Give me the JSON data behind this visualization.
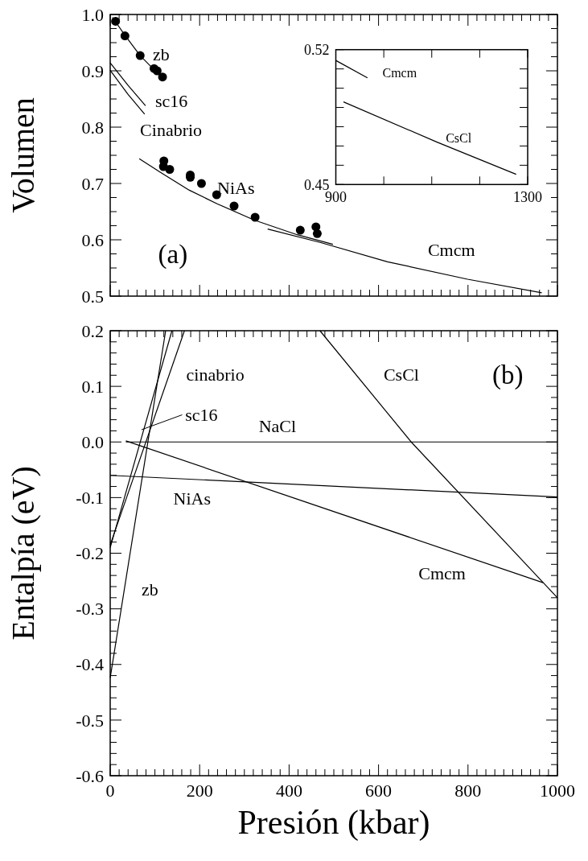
{
  "chart_data": [
    {
      "type": "line",
      "ylabel": "Volumen",
      "xlim": [
        0,
        1000
      ],
      "ylim": [
        0.5,
        1.0
      ],
      "xticks": [
        {
          "value": 0,
          "label": null
        },
        {
          "value": 200,
          "label": null
        },
        {
          "value": 400,
          "label": null
        },
        {
          "value": 600,
          "label": null
        },
        {
          "value": 800,
          "label": null
        },
        {
          "value": 1000,
          "label": null
        }
      ],
      "yticks": [
        0.5,
        0.6,
        0.7,
        0.8,
        0.9,
        {
          "value": 1.0,
          "label": "1.0"
        }
      ],
      "tick_labels": "y",
      "line_style": "solid",
      "marker": "none",
      "grid": false,
      "series": [
        {
          "color": "#000000",
          "x": [
            5,
            33,
            67,
            98,
            117
          ],
          "values": [
            0.995,
            0.963,
            0.927,
            0.902,
            0.889
          ]
        },
        {
          "color": "#000000",
          "x": [
            0,
            40,
            79
          ],
          "values": [
            0.914,
            0.874,
            0.838
          ]
        },
        {
          "color": "#000000",
          "x": [
            0,
            40,
            77
          ],
          "values": [
            0.901,
            0.858,
            0.823
          ]
        },
        {
          "color": "#000000",
          "x": [
            65,
            114,
            177,
            239,
            322,
            418,
            498
          ],
          "values": [
            0.744,
            0.719,
            0.688,
            0.664,
            0.635,
            0.609,
            0.592
          ]
        },
        {
          "color": "#000000",
          "x": [
            352,
            471,
            620,
            799,
            965
          ],
          "values": [
            0.619,
            0.595,
            0.561,
            0.53,
            0.506
          ]
        },
        {
          "type": "scatter",
          "marker": "circle",
          "color": "#000000",
          "x": [
            12,
            33,
            67,
            98,
            105,
            117,
            120,
            119,
            133,
            179,
            179,
            204,
            238,
            277,
            324,
            425,
            460,
            463
          ],
          "values": [
            0.988,
            0.962,
            0.927,
            0.904,
            0.9,
            0.889,
            0.74,
            0.73,
            0.725,
            0.715,
            0.711,
            0.7,
            0.68,
            0.66,
            0.64,
            0.617,
            0.623,
            0.611
          ]
        }
      ],
      "annotations": [
        "zb",
        "sc16",
        "Cinabrio",
        "NiAs",
        "Cmcm",
        "(a)"
      ]
    },
    {
      "type": "line",
      "xlim": [
        900,
        1300
      ],
      "ylim": [
        0.45,
        0.52
      ],
      "xticks": [
        900,
        {
          "value": 1000,
          "label": null
        },
        {
          "value": 1100,
          "label": null
        },
        {
          "value": 1200,
          "label": null
        },
        1300
      ],
      "yticks": [
        0.45,
        {
          "value": 0.46,
          "label": null
        },
        {
          "value": 0.47,
          "label": null
        },
        {
          "value": 0.48,
          "label": null
        },
        {
          "value": 0.49,
          "label": null
        },
        {
          "value": 0.5,
          "label": null
        },
        {
          "value": 0.51,
          "label": null
        },
        0.52
      ],
      "line_style": "solid",
      "marker": "none",
      "grid": false,
      "series": [
        {
          "color": "#000000",
          "x": [
            900,
            966
          ],
          "values": [
            0.5144,
            0.5054
          ]
        },
        {
          "color": "#000000",
          "x": [
            916,
            1111,
            1276
          ],
          "values": [
            0.4929,
            0.472,
            0.4553
          ]
        }
      ],
      "annotations": [
        "Cmcm",
        "CsCl"
      ]
    },
    {
      "type": "line",
      "xlabel": "Presión (kbar)",
      "ylabel": "Entalpía (eV)",
      "xlim": [
        0,
        1000
      ],
      "ylim": [
        -0.6,
        0.2
      ],
      "xticks": [
        0,
        200,
        400,
        600,
        800,
        1000
      ],
      "yticks": [
        -0.6,
        -0.5,
        -0.4,
        -0.3,
        -0.2,
        -0.1,
        {
          "value": 0,
          "label": "0.0"
        },
        0.1,
        0.2
      ],
      "line_style": "solid",
      "marker": "none",
      "grid": false,
      "series": [
        {
          "color": "#000000",
          "x": [
            0,
            124
          ],
          "values": [
            -0.424,
            0.2
          ]
        },
        {
          "color": "#000000",
          "x": [
            0,
            138
          ],
          "values": [
            -0.19,
            0.2
          ]
        },
        {
          "color": "#000000",
          "x": [
            0,
            166
          ],
          "values": [
            -0.185,
            0.2
          ]
        },
        {
          "color": "#000000",
          "x": [
            35,
            1000
          ],
          "values": [
            0,
            0
          ]
        },
        {
          "color": "#000000",
          "x": [
            0,
            1000
          ],
          "values": [
            -0.06,
            -0.099
          ]
        },
        {
          "color": "#000000",
          "x": [
            35,
            968
          ],
          "values": [
            0.002,
            -0.253
          ]
        },
        {
          "color": "#000000",
          "x": [
            469,
            673,
            1000
          ],
          "values": [
            0.2,
            0,
            -0.28
          ]
        }
      ],
      "annotations": [
        "cinabrio",
        {
          "text": "sc16",
          "x": 70,
          "y": 0.022
        },
        "NaCl",
        "NiAs",
        "zb",
        "Cmcm",
        "CsCl",
        "(b)"
      ]
    }
  ]
}
